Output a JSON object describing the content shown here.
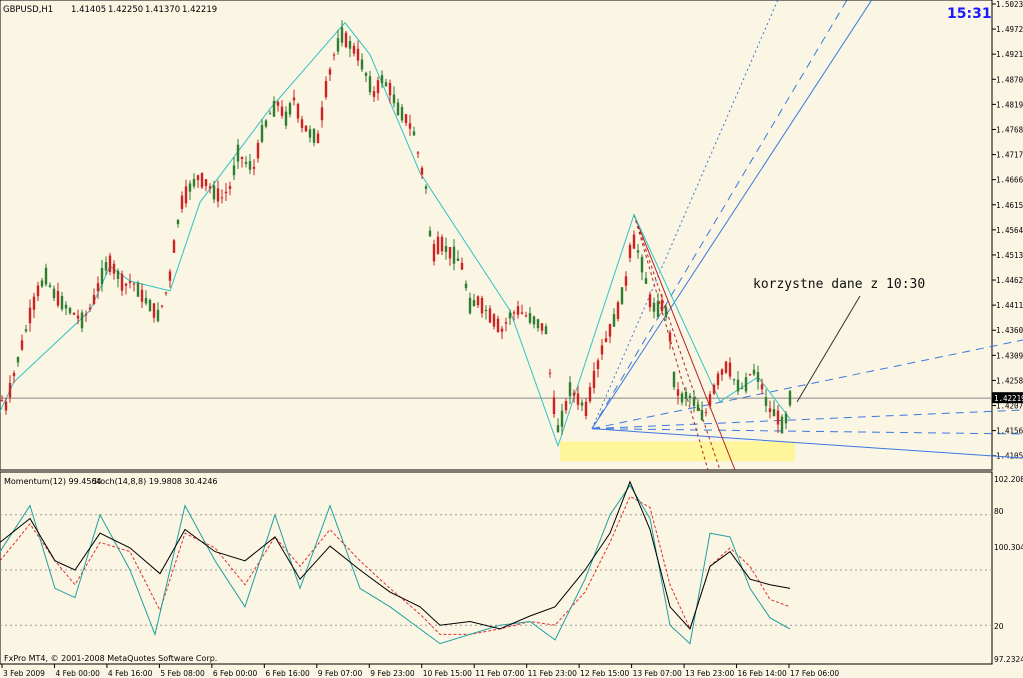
{
  "window": {
    "symbol_title": "GBPUSD,H1",
    "ohlc": [
      "1.41405",
      "1.42250",
      "1.41370",
      "1.42219"
    ],
    "clock": "15:31",
    "footer": "FxPro MT4, © 2001-2008 MetaQuotes Software Corp."
  },
  "annotation": {
    "text": "korzystne dane z 10:30"
  },
  "indicator": {
    "momentum_label": "Momentum(12) 99.4504",
    "stoch_label": "Stoch(14,8,8) 19.9808 30.4246",
    "scale_labels": [
      "102.2088",
      "80",
      "100.3048",
      "20",
      "97.2324"
    ]
  },
  "colors": {
    "background": "#fbf5e4",
    "bull_candle": "#2e7d32",
    "bear_candle": "#cc2222",
    "zigzag": "#2ec4c4",
    "fan_lines": "#3a78e0",
    "momentum": "#000000",
    "stoch_main": "#20a0a0",
    "stoch_signal": "#e03030",
    "clock": "#1a1aff"
  },
  "chart_data": {
    "type": "candlestick",
    "title": "GBPUSD,H1",
    "price_axis_labels": [
      "1.50230",
      "1.49720",
      "1.49210",
      "1.48700",
      "1.48190",
      "1.47680",
      "1.47170",
      "1.46660",
      "1.46150",
      "1.45640",
      "1.45130",
      "1.44620",
      "1.44110",
      "1.43600",
      "1.43090",
      "1.42580",
      "1.42070",
      "1.41560",
      "1.41050"
    ],
    "current_price": "1.42219",
    "ylim": [
      1.408,
      1.5023
    ],
    "time_axis_labels": [
      "3 Feb 2009",
      "4 Feb 00:00",
      "4 Feb 16:00",
      "5 Feb 08:00",
      "6 Feb 00:00",
      "6 Feb 16:00",
      "9 Feb 07:00",
      "9 Feb 23:00",
      "10 Feb 15:00",
      "11 Feb 07:00",
      "11 Feb 23:00",
      "12 Feb 15:00",
      "13 Feb 07:00",
      "13 Feb 23:00",
      "16 Feb 14:00",
      "17 Feb 06:00"
    ],
    "price_path": [
      [
        0,
        1.4245
      ],
      [
        4,
        1.419
      ],
      [
        14,
        1.427
      ],
      [
        22,
        1.433
      ],
      [
        30,
        1.439
      ],
      [
        38,
        1.444
      ],
      [
        46,
        1.447
      ],
      [
        52,
        1.444
      ],
      [
        60,
        1.442
      ],
      [
        70,
        1.44
      ],
      [
        82,
        1.438
      ],
      [
        92,
        1.441
      ],
      [
        100,
        1.446
      ],
      [
        108,
        1.45
      ],
      [
        116,
        1.448
      ],
      [
        124,
        1.445
      ],
      [
        132,
        1.446
      ],
      [
        142,
        1.443
      ],
      [
        150,
        1.441
      ],
      [
        158,
        1.439
      ],
      [
        164,
        1.442
      ],
      [
        170,
        1.447
      ],
      [
        176,
        1.456
      ],
      [
        182,
        1.462
      ],
      [
        190,
        1.465
      ],
      [
        198,
        1.467
      ],
      [
        206,
        1.466
      ],
      [
        214,
        1.464
      ],
      [
        222,
        1.463
      ],
      [
        230,
        1.465
      ],
      [
        238,
        1.472
      ],
      [
        246,
        1.47
      ],
      [
        254,
        1.469
      ],
      [
        262,
        1.476
      ],
      [
        270,
        1.48
      ],
      [
        278,
        1.482
      ],
      [
        286,
        1.479
      ],
      [
        294,
        1.483
      ],
      [
        302,
        1.478
      ],
      [
        310,
        1.476
      ],
      [
        318,
        1.475
      ],
      [
        326,
        1.485
      ],
      [
        334,
        1.492
      ],
      [
        342,
        1.496
      ],
      [
        350,
        1.494
      ],
      [
        358,
        1.492
      ],
      [
        366,
        1.488
      ],
      [
        374,
        1.484
      ],
      [
        382,
        1.487
      ],
      [
        390,
        1.485
      ],
      [
        398,
        1.481
      ],
      [
        406,
        1.479
      ],
      [
        414,
        1.476
      ],
      [
        420,
        1.47
      ],
      [
        426,
        1.465
      ],
      [
        432,
        1.451
      ],
      [
        440,
        1.454
      ],
      [
        448,
        1.452
      ],
      [
        456,
        1.451
      ],
      [
        462,
        1.449
      ],
      [
        470,
        1.441
      ],
      [
        478,
        1.442
      ],
      [
        486,
        1.44
      ],
      [
        494,
        1.438
      ],
      [
        502,
        1.436
      ],
      [
        510,
        1.439
      ],
      [
        518,
        1.44
      ],
      [
        526,
        1.439
      ],
      [
        534,
        1.438
      ],
      [
        540,
        1.437
      ],
      [
        546,
        1.436
      ],
      [
        552,
        1.423
      ],
      [
        558,
        1.416
      ],
      [
        564,
        1.419
      ],
      [
        570,
        1.424
      ],
      [
        578,
        1.422
      ],
      [
        586,
        1.42
      ],
      [
        594,
        1.426
      ],
      [
        602,
        1.432
      ],
      [
        610,
        1.436
      ],
      [
        618,
        1.44
      ],
      [
        626,
        1.446
      ],
      [
        632,
        1.455
      ],
      [
        638,
        1.452
      ],
      [
        644,
        1.448
      ],
      [
        650,
        1.442
      ],
      [
        656,
        1.44
      ],
      [
        662,
        1.441
      ],
      [
        668,
        1.439
      ],
      [
        674,
        1.426
      ],
      [
        680,
        1.422
      ],
      [
        688,
        1.423
      ],
      [
        696,
        1.421
      ],
      [
        704,
        1.418
      ],
      [
        712,
        1.423
      ],
      [
        720,
        1.427
      ],
      [
        728,
        1.429
      ],
      [
        736,
        1.425
      ],
      [
        744,
        1.424
      ],
      [
        752,
        1.428
      ],
      [
        760,
        1.426
      ],
      [
        768,
        1.42
      ],
      [
        776,
        1.419
      ],
      [
        784,
        1.416
      ],
      [
        790,
        1.4222
      ]
    ],
    "zigzag": [
      [
        0,
        1.4195
      ],
      [
        14,
        1.4255
      ],
      [
        90,
        1.44
      ],
      [
        110,
        1.449
      ],
      [
        130,
        1.446
      ],
      [
        170,
        1.444
      ],
      [
        200,
        1.462
      ],
      [
        270,
        1.481
      ],
      [
        345,
        1.4985
      ],
      [
        370,
        1.492
      ],
      [
        420,
        1.468
      ],
      [
        510,
        1.44
      ],
      [
        558,
        1.4125
      ],
      [
        634,
        1.4595
      ],
      [
        720,
        1.4215
      ],
      [
        758,
        1.4265
      ],
      [
        790,
        1.418
      ]
    ],
    "pitchfork_origin": [
      592,
      1.416
    ],
    "channel": {
      "x0": 560,
      "x1": 795,
      "y_top": 1.413,
      "y_bottom": 1.411,
      "color": "#fff59a"
    },
    "indicator_series": {
      "momentum": [
        [
          0,
          65
        ],
        [
          30,
          78
        ],
        [
          55,
          55
        ],
        [
          75,
          50
        ],
        [
          100,
          70
        ],
        [
          130,
          62
        ],
        [
          160,
          48
        ],
        [
          185,
          72
        ],
        [
          215,
          60
        ],
        [
          245,
          55
        ],
        [
          275,
          68
        ],
        [
          300,
          45
        ],
        [
          330,
          63
        ],
        [
          360,
          50
        ],
        [
          390,
          38
        ],
        [
          420,
          30
        ],
        [
          440,
          20
        ],
        [
          470,
          22
        ],
        [
          500,
          18
        ],
        [
          530,
          25
        ],
        [
          555,
          30
        ],
        [
          585,
          50
        ],
        [
          610,
          70
        ],
        [
          630,
          98
        ],
        [
          650,
          72
        ],
        [
          670,
          30
        ],
        [
          690,
          18
        ],
        [
          710,
          52
        ],
        [
          730,
          60
        ],
        [
          750,
          45
        ],
        [
          770,
          42
        ],
        [
          790,
          40
        ]
      ],
      "stoch_main": [
        [
          0,
          60
        ],
        [
          30,
          85
        ],
        [
          55,
          40
        ],
        [
          75,
          35
        ],
        [
          100,
          80
        ],
        [
          130,
          50
        ],
        [
          155,
          15
        ],
        [
          185,
          85
        ],
        [
          215,
          55
        ],
        [
          245,
          30
        ],
        [
          275,
          80
        ],
        [
          300,
          40
        ],
        [
          330,
          85
        ],
        [
          360,
          40
        ],
        [
          390,
          30
        ],
        [
          420,
          18
        ],
        [
          440,
          10
        ],
        [
          470,
          15
        ],
        [
          500,
          20
        ],
        [
          530,
          22
        ],
        [
          555,
          12
        ],
        [
          585,
          45
        ],
        [
          610,
          80
        ],
        [
          630,
          96
        ],
        [
          650,
          78
        ],
        [
          670,
          20
        ],
        [
          690,
          10
        ],
        [
          710,
          70
        ],
        [
          730,
          68
        ],
        [
          750,
          40
        ],
        [
          770,
          24
        ],
        [
          790,
          18
        ]
      ],
      "stoch_signal": [
        [
          0,
          55
        ],
        [
          30,
          75
        ],
        [
          55,
          55
        ],
        [
          75,
          42
        ],
        [
          100,
          65
        ],
        [
          130,
          60
        ],
        [
          160,
          28
        ],
        [
          185,
          70
        ],
        [
          215,
          62
        ],
        [
          245,
          42
        ],
        [
          275,
          68
        ],
        [
          300,
          52
        ],
        [
          330,
          72
        ],
        [
          360,
          55
        ],
        [
          390,
          40
        ],
        [
          420,
          26
        ],
        [
          440,
          15
        ],
        [
          470,
          15
        ],
        [
          500,
          18
        ],
        [
          530,
          22
        ],
        [
          555,
          20
        ],
        [
          585,
          38
        ],
        [
          610,
          65
        ],
        [
          630,
          90
        ],
        [
          650,
          84
        ],
        [
          670,
          42
        ],
        [
          690,
          18
        ],
        [
          710,
          52
        ],
        [
          730,
          62
        ],
        [
          750,
          52
        ],
        [
          770,
          34
        ],
        [
          790,
          30
        ]
      ]
    }
  }
}
